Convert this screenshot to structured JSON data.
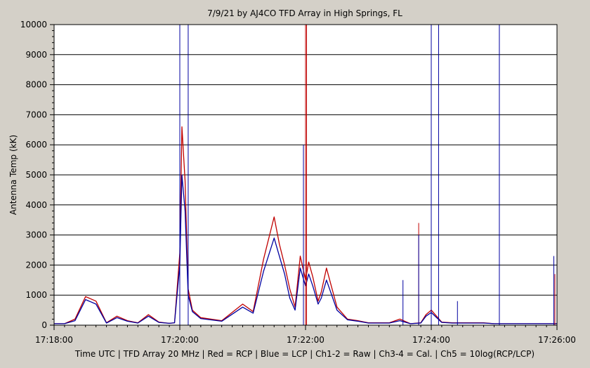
{
  "chart_data": {
    "type": "line",
    "title": "7/9/21  by  AJ4CO TFD Array  in  High Springs, FL",
    "ylabel": "Antenna Temp (kK)",
    "xlabel": "Time UTC | TFD Array 20 MHz | Red = RCP | Blue = LCP | Ch1-2 = Raw | Ch3-4 = Cal. | Ch5 = 10log(RCP/LCP)",
    "ylim": [
      0,
      10000
    ],
    "xlim": [
      "17:18:00",
      "17:26:00"
    ],
    "yticks": [
      0,
      1000,
      2000,
      3000,
      4000,
      5000,
      6000,
      7000,
      8000,
      9000,
      10000
    ],
    "xticks": [
      "17:18:00",
      "17:20:00",
      "17:22:00",
      "17:24:00",
      "17:26:00"
    ],
    "grid": true,
    "colors": {
      "background": "#d4d0c8",
      "plot_area": "#ffffff",
      "grid": "#000000",
      "rcp": "#c00000",
      "lcp": "#0000a0"
    },
    "series": [
      {
        "name": "RCP",
        "color": "#c00000",
        "x": [
          "17:18:00",
          "17:18:10",
          "17:18:20",
          "17:18:30",
          "17:18:40",
          "17:18:50",
          "17:19:00",
          "17:19:10",
          "17:19:20",
          "17:19:30",
          "17:19:40",
          "17:19:50",
          "17:19:55",
          "17:20:00",
          "17:20:02",
          "17:20:05",
          "17:20:08",
          "17:20:12",
          "17:20:20",
          "17:20:40",
          "17:21:00",
          "17:21:10",
          "17:21:20",
          "17:21:30",
          "17:21:35",
          "17:21:40",
          "17:21:45",
          "17:21:50",
          "17:21:55",
          "17:22:00",
          "17:22:03",
          "17:22:07",
          "17:22:12",
          "17:22:15",
          "17:22:20",
          "17:22:30",
          "17:22:40",
          "17:22:50",
          "17:23:00",
          "17:23:10",
          "17:23:20",
          "17:23:30",
          "17:23:40",
          "17:23:50",
          "17:23:55",
          "17:24:00",
          "17:24:10",
          "17:24:20",
          "17:24:30",
          "17:24:40",
          "17:24:50",
          "17:25:00",
          "17:25:10",
          "17:25:20",
          "17:25:30",
          "17:25:40",
          "17:25:50",
          "17:26:00"
        ],
        "values": [
          50,
          50,
          200,
          950,
          800,
          80,
          300,
          150,
          80,
          350,
          100,
          60,
          80,
          2400,
          6600,
          4800,
          1200,
          500,
          250,
          150,
          700,
          450,
          2200,
          3600,
          2700,
          2000,
          1200,
          600,
          2300,
          1500,
          2100,
          1600,
          800,
          1100,
          1900,
          600,
          200,
          150,
          80,
          80,
          80,
          200,
          50,
          80,
          350,
          500,
          100,
          80,
          80,
          80,
          80,
          50,
          50,
          50,
          50,
          50,
          50,
          50
        ]
      },
      {
        "name": "LCP",
        "color": "#0000a0",
        "x": [
          "17:18:00",
          "17:18:10",
          "17:18:20",
          "17:18:30",
          "17:18:40",
          "17:18:50",
          "17:19:00",
          "17:19:10",
          "17:19:20",
          "17:19:30",
          "17:19:40",
          "17:19:50",
          "17:19:55",
          "17:20:00",
          "17:20:02",
          "17:20:05",
          "17:20:08",
          "17:20:12",
          "17:20:20",
          "17:20:40",
          "17:21:00",
          "17:21:10",
          "17:21:20",
          "17:21:30",
          "17:21:35",
          "17:21:40",
          "17:21:45",
          "17:21:50",
          "17:21:55",
          "17:22:00",
          "17:22:03",
          "17:22:07",
          "17:22:12",
          "17:22:15",
          "17:22:20",
          "17:22:30",
          "17:22:40",
          "17:22:50",
          "17:23:00",
          "17:23:10",
          "17:23:20",
          "17:23:30",
          "17:23:40",
          "17:23:50",
          "17:23:55",
          "17:24:00",
          "17:24:10",
          "17:24:20",
          "17:24:30",
          "17:24:40",
          "17:24:50",
          "17:25:00",
          "17:25:10",
          "17:25:20",
          "17:25:30",
          "17:25:40",
          "17:25:50",
          "17:26:00"
        ],
        "values": [
          50,
          50,
          150,
          850,
          700,
          70,
          250,
          130,
          70,
          300,
          90,
          60,
          80,
          2000,
          5000,
          3800,
          1000,
          450,
          220,
          130,
          600,
          400,
          1800,
          2900,
          2300,
          1700,
          900,
          500,
          1900,
          1300,
          1700,
          1300,
          700,
          900,
          1500,
          500,
          180,
          130,
          70,
          70,
          70,
          150,
          50,
          70,
          300,
          420,
          90,
          70,
          70,
          70,
          70,
          50,
          50,
          50,
          50,
          50,
          50,
          50
        ]
      }
    ],
    "spikes": [
      {
        "time": "17:20:00",
        "series": "LCP",
        "top": 10000
      },
      {
        "time": "17:20:08",
        "series": "LCP",
        "top": 10000
      },
      {
        "time": "17:21:58",
        "series": "LCP",
        "top": 6000
      },
      {
        "time": "17:22:00",
        "series": "RCP",
        "top": 10000
      },
      {
        "time": "17:22:01",
        "series": "RCP",
        "top": 10000
      },
      {
        "time": "17:23:33",
        "series": "LCP",
        "top": 1500
      },
      {
        "time": "17:23:48",
        "series": "RCP",
        "top": 3400
      },
      {
        "time": "17:23:48",
        "series": "LCP",
        "top": 3000
      },
      {
        "time": "17:24:00",
        "series": "LCP",
        "top": 10000
      },
      {
        "time": "17:24:07",
        "series": "LCP",
        "top": 10000
      },
      {
        "time": "17:24:25",
        "series": "LCP",
        "top": 800
      },
      {
        "time": "17:25:05",
        "series": "LCP",
        "top": 10000
      },
      {
        "time": "17:25:57",
        "series": "LCP",
        "top": 2300
      },
      {
        "time": "17:25:58",
        "series": "RCP",
        "top": 1700
      }
    ]
  }
}
